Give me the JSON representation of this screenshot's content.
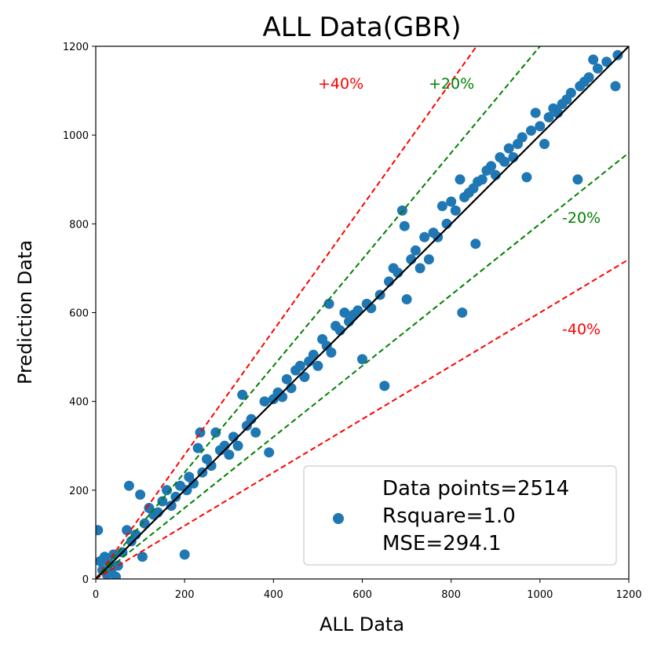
{
  "chart_data": {
    "type": "scatter",
    "title": "ALL Data(GBR)",
    "xlabel": "ALL Data",
    "ylabel": "Prediction Data",
    "xlim": [
      0,
      1200
    ],
    "ylim": [
      0,
      1200
    ],
    "xticks": [
      "0",
      "200",
      "400",
      "600",
      "800",
      "1000",
      "1200"
    ],
    "yticks": [
      "0",
      "200",
      "400",
      "600",
      "800",
      "1000",
      "1200"
    ],
    "grid": false,
    "legend_position": "bottom-right",
    "legend": {
      "line1": "Data points=2514",
      "line2": "Rsquare=1.0",
      "line3": "MSE=294.1"
    },
    "reference_lines": [
      {
        "label": "+40%",
        "slope": 1.4,
        "color": "#ff0000"
      },
      {
        "label": "+20%",
        "slope": 1.2,
        "color": "#008000"
      },
      {
        "label": "-20%",
        "slope": 0.8,
        "color": "#008000"
      },
      {
        "label": "-40%",
        "slope": 0.6,
        "color": "#ff0000"
      }
    ],
    "identity_line": {
      "slope": 1.0,
      "color": "#000000"
    },
    "point_color": "#1f77b4",
    "points": [
      [
        5,
        110
      ],
      [
        10,
        40
      ],
      [
        15,
        20
      ],
      [
        20,
        50
      ],
      [
        25,
        10
      ],
      [
        30,
        35
      ],
      [
        35,
        15
      ],
      [
        40,
        55
      ],
      [
        45,
        5
      ],
      [
        50,
        30
      ],
      [
        60,
        60
      ],
      [
        70,
        110
      ],
      [
        75,
        210
      ],
      [
        80,
        85
      ],
      [
        90,
        100
      ],
      [
        100,
        190
      ],
      [
        105,
        50
      ],
      [
        110,
        125
      ],
      [
        120,
        160
      ],
      [
        130,
        145
      ],
      [
        140,
        150
      ],
      [
        150,
        175
      ],
      [
        160,
        200
      ],
      [
        170,
        165
      ],
      [
        180,
        185
      ],
      [
        190,
        210
      ],
      [
        200,
        55
      ],
      [
        205,
        200
      ],
      [
        210,
        230
      ],
      [
        220,
        215
      ],
      [
        230,
        295
      ],
      [
        235,
        330
      ],
      [
        240,
        240
      ],
      [
        250,
        270
      ],
      [
        260,
        255
      ],
      [
        270,
        330
      ],
      [
        280,
        290
      ],
      [
        290,
        300
      ],
      [
        300,
        280
      ],
      [
        310,
        320
      ],
      [
        320,
        300
      ],
      [
        330,
        415
      ],
      [
        340,
        345
      ],
      [
        350,
        360
      ],
      [
        360,
        330
      ],
      [
        380,
        400
      ],
      [
        390,
        285
      ],
      [
        400,
        405
      ],
      [
        410,
        420
      ],
      [
        420,
        410
      ],
      [
        430,
        450
      ],
      [
        440,
        430
      ],
      [
        450,
        470
      ],
      [
        460,
        480
      ],
      [
        470,
        455
      ],
      [
        480,
        490
      ],
      [
        490,
        505
      ],
      [
        500,
        480
      ],
      [
        510,
        540
      ],
      [
        520,
        525
      ],
      [
        525,
        620
      ],
      [
        530,
        510
      ],
      [
        540,
        570
      ],
      [
        550,
        560
      ],
      [
        560,
        600
      ],
      [
        570,
        580
      ],
      [
        580,
        595
      ],
      [
        590,
        605
      ],
      [
        600,
        495
      ],
      [
        610,
        620
      ],
      [
        620,
        610
      ],
      [
        640,
        640
      ],
      [
        650,
        435
      ],
      [
        660,
        670
      ],
      [
        670,
        700
      ],
      [
        680,
        690
      ],
      [
        690,
        830
      ],
      [
        695,
        795
      ],
      [
        700,
        630
      ],
      [
        710,
        720
      ],
      [
        720,
        740
      ],
      [
        730,
        700
      ],
      [
        740,
        770
      ],
      [
        750,
        720
      ],
      [
        760,
        780
      ],
      [
        770,
        770
      ],
      [
        780,
        840
      ],
      [
        790,
        800
      ],
      [
        800,
        850
      ],
      [
        810,
        830
      ],
      [
        820,
        900
      ],
      [
        825,
        600
      ],
      [
        830,
        860
      ],
      [
        840,
        870
      ],
      [
        850,
        880
      ],
      [
        855,
        755
      ],
      [
        860,
        895
      ],
      [
        870,
        900
      ],
      [
        880,
        920
      ],
      [
        890,
        930
      ],
      [
        900,
        910
      ],
      [
        910,
        950
      ],
      [
        920,
        940
      ],
      [
        930,
        970
      ],
      [
        940,
        950
      ],
      [
        950,
        980
      ],
      [
        960,
        995
      ],
      [
        970,
        905
      ],
      [
        980,
        1010
      ],
      [
        990,
        1050
      ],
      [
        1000,
        1020
      ],
      [
        1010,
        980
      ],
      [
        1020,
        1040
      ],
      [
        1030,
        1060
      ],
      [
        1040,
        1050
      ],
      [
        1050,
        1070
      ],
      [
        1060,
        1080
      ],
      [
        1070,
        1095
      ],
      [
        1085,
        900
      ],
      [
        1090,
        1110
      ],
      [
        1100,
        1120
      ],
      [
        1110,
        1130
      ],
      [
        1120,
        1170
      ],
      [
        1130,
        1150
      ],
      [
        1150,
        1165
      ],
      [
        1170,
        1110
      ],
      [
        1175,
        1180
      ]
    ]
  }
}
